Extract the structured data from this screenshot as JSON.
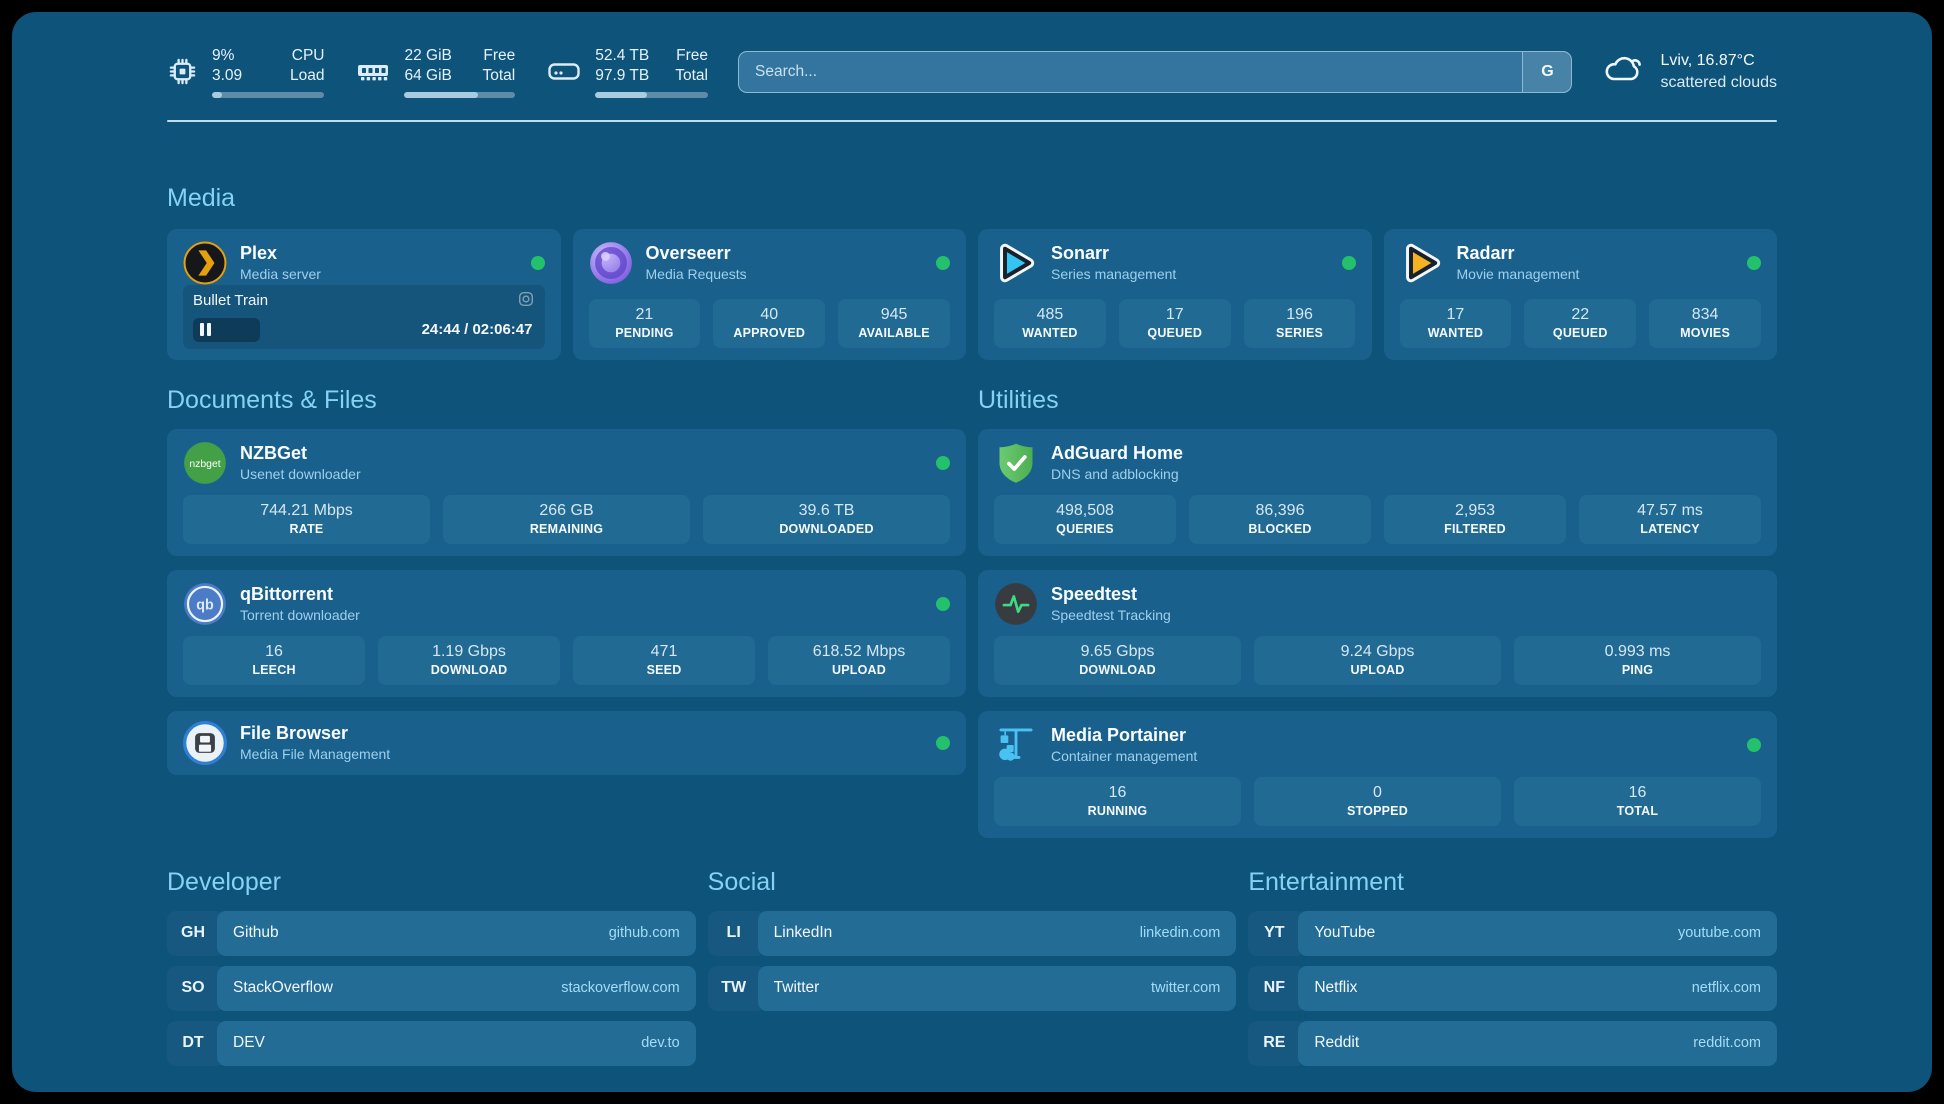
{
  "theme": {
    "outer_background": "#000000",
    "page_background": "#0E537A",
    "card_background": "#19618C",
    "tile_background": "#216A94",
    "section_title_color": "#85D2F2",
    "status_online_color": "#24C16D"
  },
  "header": {
    "system_stats": [
      {
        "icon": "cpu-icon",
        "values": [
          "9%",
          "3.09"
        ],
        "labels": [
          "CPU",
          "Load"
        ],
        "progress_pct": 9
      },
      {
        "icon": "memory-icon",
        "values": [
          "22 GiB",
          "64 GiB"
        ],
        "labels": [
          "Free",
          "Total"
        ],
        "progress_pct": 66
      },
      {
        "icon": "disk-icon",
        "values": [
          "52.4 TB",
          "97.9 TB"
        ],
        "labels": [
          "Free",
          "Total"
        ],
        "progress_pct": 46
      }
    ],
    "search": {
      "placeholder": "Search...",
      "provider_label": "G"
    },
    "weather": {
      "icon": "cloud-icon",
      "location_temp": "Lviv, 16.87°C",
      "condition": "scattered clouds"
    }
  },
  "sections": {
    "media": {
      "title": "Media",
      "apps": [
        {
          "name": "Plex",
          "description": "Media server",
          "icon": "plex-icon",
          "online": true,
          "now_playing": {
            "title": "Bullet Train",
            "elapsed": "24:44",
            "duration": "02:06:47",
            "time_display": "24:44 / 02:06:47",
            "progress_pct": 19.5,
            "state": "paused"
          }
        },
        {
          "name": "Overseerr",
          "description": "Media Requests",
          "icon": "overseerr-icon",
          "online": true,
          "stats": [
            {
              "value": "21",
              "label": "PENDING"
            },
            {
              "value": "40",
              "label": "APPROVED"
            },
            {
              "value": "945",
              "label": "AVAILABLE"
            }
          ]
        },
        {
          "name": "Sonarr",
          "description": "Series management",
          "icon": "sonarr-icon",
          "online": true,
          "stats": [
            {
              "value": "485",
              "label": "WANTED"
            },
            {
              "value": "17",
              "label": "QUEUED"
            },
            {
              "value": "196",
              "label": "SERIES"
            }
          ]
        },
        {
          "name": "Radarr",
          "description": "Movie management",
          "icon": "radarr-icon",
          "online": true,
          "stats": [
            {
              "value": "17",
              "label": "WANTED"
            },
            {
              "value": "22",
              "label": "QUEUED"
            },
            {
              "value": "834",
              "label": "MOVIES"
            }
          ]
        }
      ]
    },
    "documents": {
      "title": "Documents & Files",
      "apps": [
        {
          "name": "NZBGet",
          "description": "Usenet downloader",
          "icon": "nzbget-icon",
          "online": true,
          "stats": [
            {
              "value": "744.21 Mbps",
              "label": "RATE"
            },
            {
              "value": "266 GB",
              "label": "REMAINING"
            },
            {
              "value": "39.6 TB",
              "label": "DOWNLOADED"
            }
          ]
        },
        {
          "name": "qBittorrent",
          "description": "Torrent downloader",
          "icon": "qbittorrent-icon",
          "online": true,
          "stats": [
            {
              "value": "16",
              "label": "LEECH"
            },
            {
              "value": "1.19 Gbps",
              "label": "DOWNLOAD"
            },
            {
              "value": "471",
              "label": "SEED"
            },
            {
              "value": "618.52 Mbps",
              "label": "UPLOAD"
            }
          ]
        },
        {
          "name": "File Browser",
          "description": "Media File Management",
          "icon": "filebrowser-icon",
          "online": true
        }
      ]
    },
    "utilities": {
      "title": "Utilities",
      "apps": [
        {
          "name": "AdGuard Home",
          "description": "DNS and adblocking",
          "icon": "adguard-icon",
          "stats": [
            {
              "value": "498,508",
              "label": "QUERIES"
            },
            {
              "value": "86,396",
              "label": "BLOCKED"
            },
            {
              "value": "2,953",
              "label": "FILTERED"
            },
            {
              "value": "47.57 ms",
              "label": "LATENCY"
            }
          ]
        },
        {
          "name": "Speedtest",
          "description": "Speedtest Tracking",
          "icon": "speedtest-icon",
          "stats": [
            {
              "value": "9.65 Gbps",
              "label": "DOWNLOAD"
            },
            {
              "value": "9.24 Gbps",
              "label": "UPLOAD"
            },
            {
              "value": "0.993 ms",
              "label": "PING"
            }
          ]
        },
        {
          "name": "Media Portainer",
          "description": "Container management",
          "icon": "portainer-icon",
          "online": true,
          "stats": [
            {
              "value": "16",
              "label": "RUNNING"
            },
            {
              "value": "0",
              "label": "STOPPED"
            },
            {
              "value": "16",
              "label": "TOTAL"
            }
          ]
        }
      ]
    },
    "bookmarks": [
      {
        "title": "Developer",
        "links": [
          {
            "abbr": "GH",
            "name": "Github",
            "url": "github.com"
          },
          {
            "abbr": "SO",
            "name": "StackOverflow",
            "url": "stackoverflow.com"
          },
          {
            "abbr": "DT",
            "name": "DEV",
            "url": "dev.to"
          }
        ]
      },
      {
        "title": "Social",
        "links": [
          {
            "abbr": "LI",
            "name": "LinkedIn",
            "url": "linkedin.com"
          },
          {
            "abbr": "TW",
            "name": "Twitter",
            "url": "twitter.com"
          }
        ]
      },
      {
        "title": "Entertainment",
        "links": [
          {
            "abbr": "YT",
            "name": "YouTube",
            "url": "youtube.com"
          },
          {
            "abbr": "NF",
            "name": "Netflix",
            "url": "netflix.com"
          },
          {
            "abbr": "RE",
            "name": "Reddit",
            "url": "reddit.com"
          }
        ]
      }
    ]
  }
}
